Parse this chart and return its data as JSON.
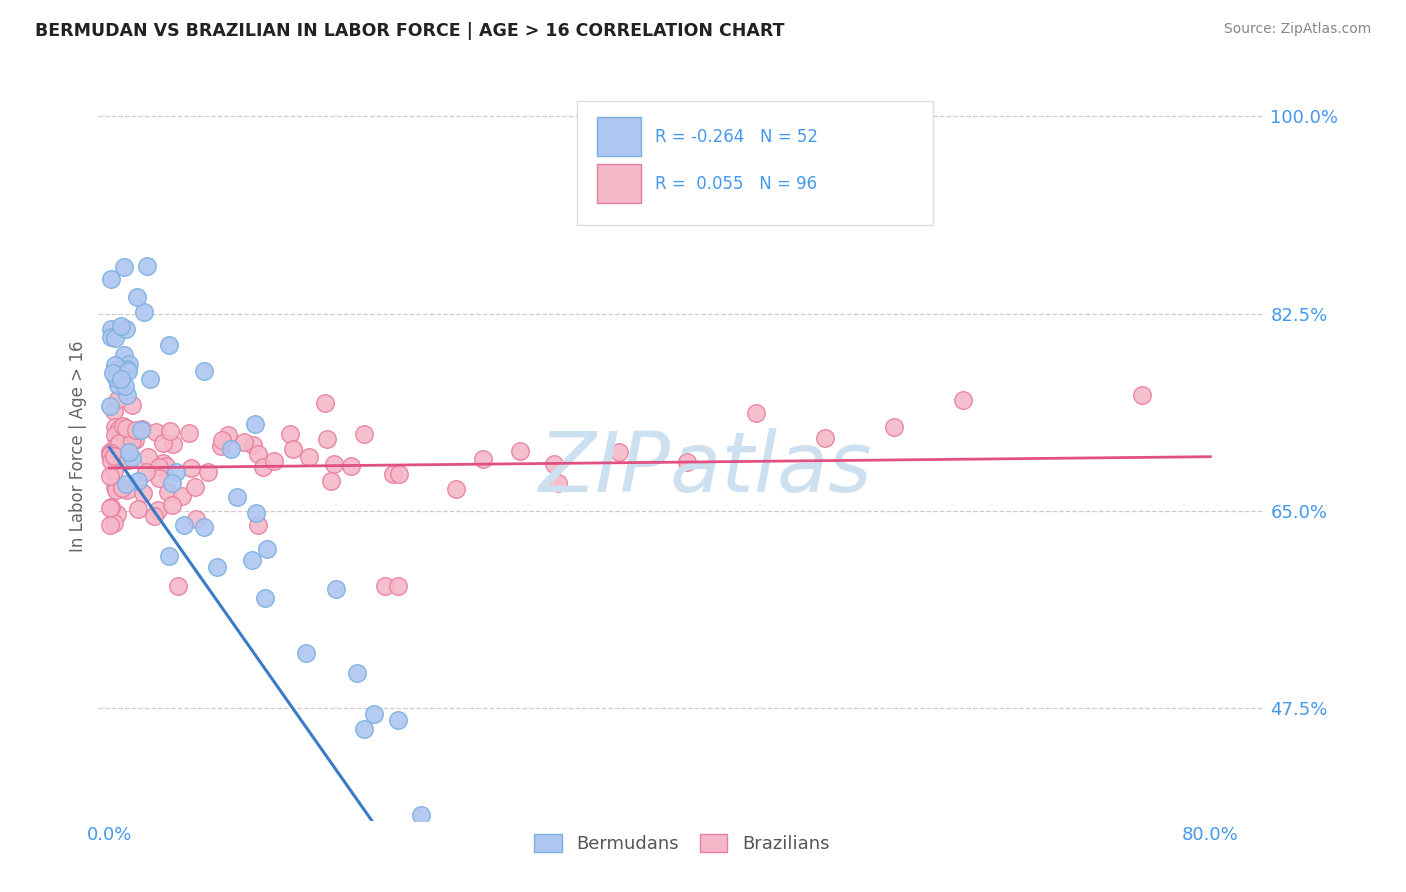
{
  "title": "BERMUDAN VS BRAZILIAN IN LABOR FORCE | AGE > 16 CORRELATION CHART",
  "source_text": "Source: ZipAtlas.com",
  "ylabel": "In Labor Force | Age > 16",
  "x_ticks": [
    0.0,
    0.8
  ],
  "x_tick_labels": [
    "0.0%",
    "80.0%"
  ],
  "y_ticks": [
    0.475,
    0.65,
    0.825,
    1.0
  ],
  "y_tick_labels": [
    "47.5%",
    "65.0%",
    "82.5%",
    "100.0%"
  ],
  "x_min": -0.008,
  "x_max": 0.84,
  "y_min": 0.375,
  "y_max": 1.04,
  "legend_text1": "R = -0.264   N = 52",
  "legend_text2": "R =  0.055   N = 96",
  "legend_color1": "#aec6f0",
  "legend_color2": "#f4b8c8",
  "legend_edge1": "#7ab0e0",
  "legend_edge2": "#e87fa0",
  "scatter_face_berm": "#aec6f0",
  "scatter_edge_berm": "#7ab0e0",
  "scatter_face_braz": "#f4b8c8",
  "scatter_edge_braz": "#e87fa0",
  "line_color_berm_solid": "#3a7bc8",
  "line_color_berm_dashed": "#a0b8d8",
  "line_color_braz": "#e05080",
  "watermark_color": "#cce0f0",
  "grid_color": "#cccccc",
  "title_color": "#222222",
  "source_color": "#888888",
  "tick_color": "#4499ee",
  "ylabel_color": "#666666"
}
